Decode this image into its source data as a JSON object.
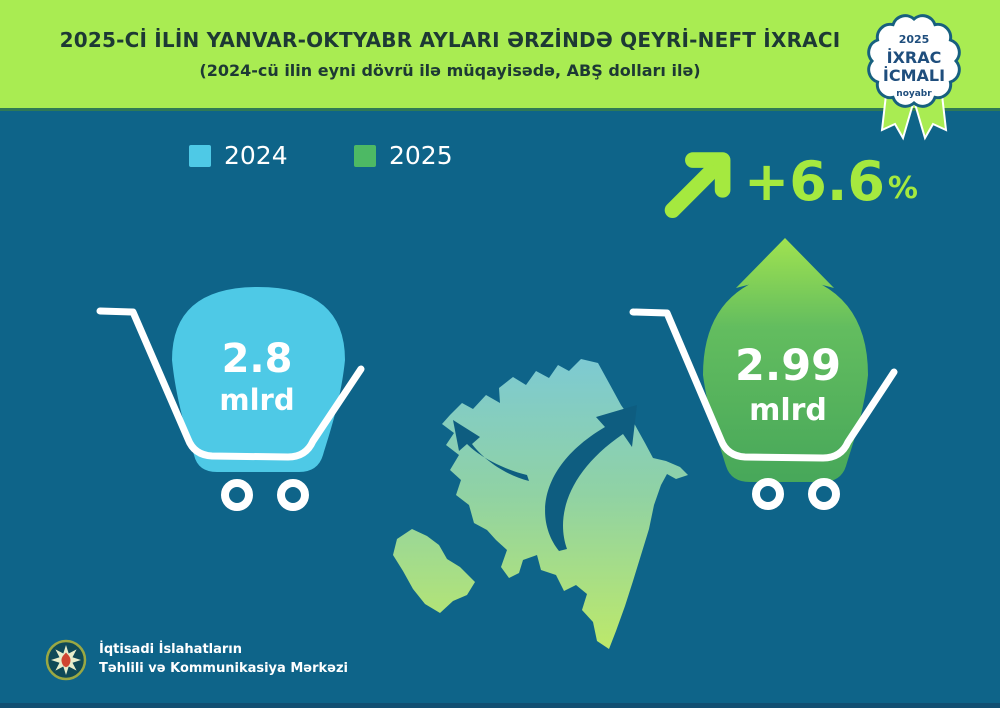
{
  "header": {
    "title": "2025-Cİ İLİN YANVAR-OKTYABR AYLARI ƏRZİNDƏ QEYRİ-NEFT İXRACI",
    "subtitle": "(2024-cü ilin eyni dövrü ilə müqayisədə, ABŞ dolları ilə)"
  },
  "badge": {
    "year": "2025",
    "title_line1": "İXRAC",
    "title_line2": "İCMALI",
    "month": "noyabr"
  },
  "legend": {
    "items": [
      {
        "label": "2024",
        "color": "#4ec9e6"
      },
      {
        "label": "2025",
        "color": "#4db964"
      }
    ]
  },
  "growth": {
    "value": "+6.6",
    "percent_sign": "%"
  },
  "carts": {
    "y2024": {
      "value": "2.8",
      "unit": "mlrd"
    },
    "y2025": {
      "value": "2.99",
      "unit": "mlrd"
    }
  },
  "footer": {
    "line1": "İqtisadi İslahatların",
    "line2": "Təhlili və Kommunikasiya Mərkəzi"
  },
  "colors": {
    "header_bg": "#a9ec52",
    "body_bg": "#0e6489",
    "accent_green": "#a5e93f",
    "blue_2024": "#4ec9e6",
    "green_2025": "#4db964",
    "badge_text": "#1f4e7d",
    "title_text": "#1d3934"
  },
  "chart_data": {
    "type": "bar",
    "title": "2025-Cİ İLİN YANVAR-OKTYABR AYLARI ƏRZİNDƏ QEYRİ-NEFT İXRACI",
    "subtitle": "(2024-cü ilin eyni dövrü ilə müqayisədə, ABŞ dolları ilə)",
    "categories": [
      "2024",
      "2025"
    ],
    "values": [
      2.8,
      2.99
    ],
    "value_labels": [
      "2.8 mlrd",
      "2.99 mlrd"
    ],
    "unit": "mlrd ABŞ dolları",
    "change_percent": "+6.6%",
    "legend": [
      "2024",
      "2025"
    ],
    "legend_position": "top-left",
    "series_colors": [
      "#4ec9e6",
      "#4db964"
    ],
    "badge": "2025 İXRAC İCMALI noyabr"
  }
}
